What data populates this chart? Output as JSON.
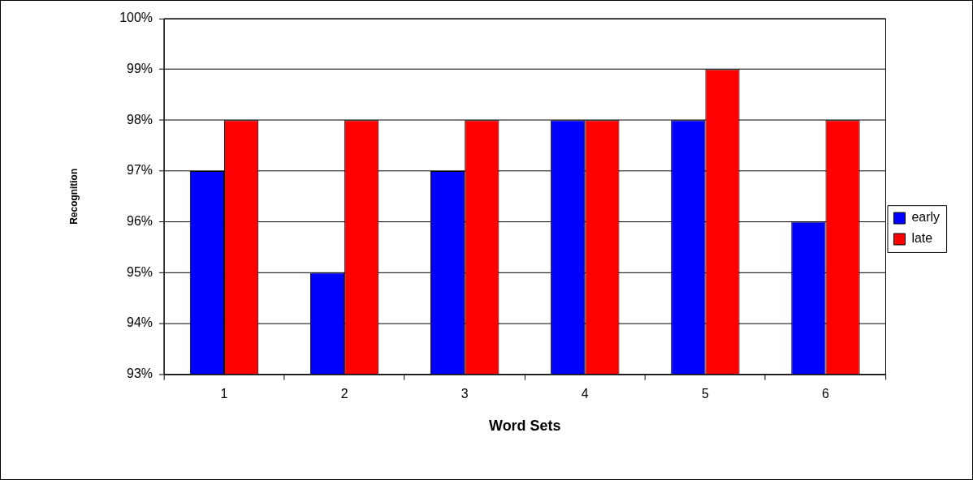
{
  "chart_data": {
    "type": "bar",
    "xlabel": "Word Sets",
    "ylabel": "Recognition",
    "categories": [
      "1",
      "2",
      "3",
      "4",
      "5",
      "6"
    ],
    "series": [
      {
        "name": "early",
        "color": "#0000ff",
        "values": [
          97,
          95,
          97,
          98,
          98,
          96
        ]
      },
      {
        "name": "late",
        "color": "#ff0000",
        "values": [
          98,
          98,
          98,
          98,
          99,
          98
        ]
      }
    ],
    "ylim": [
      93,
      100
    ],
    "yticks": [
      {
        "value": 93,
        "label": "93%"
      },
      {
        "value": 94,
        "label": "94%"
      },
      {
        "value": 95,
        "label": "95%"
      },
      {
        "value": 96,
        "label": "96%"
      },
      {
        "value": 97,
        "label": "97%"
      },
      {
        "value": 98,
        "label": "98%"
      },
      {
        "value": 99,
        "label": "99%"
      },
      {
        "value": 100,
        "label": "100%"
      }
    ],
    "grid": "y",
    "legend": "right"
  }
}
